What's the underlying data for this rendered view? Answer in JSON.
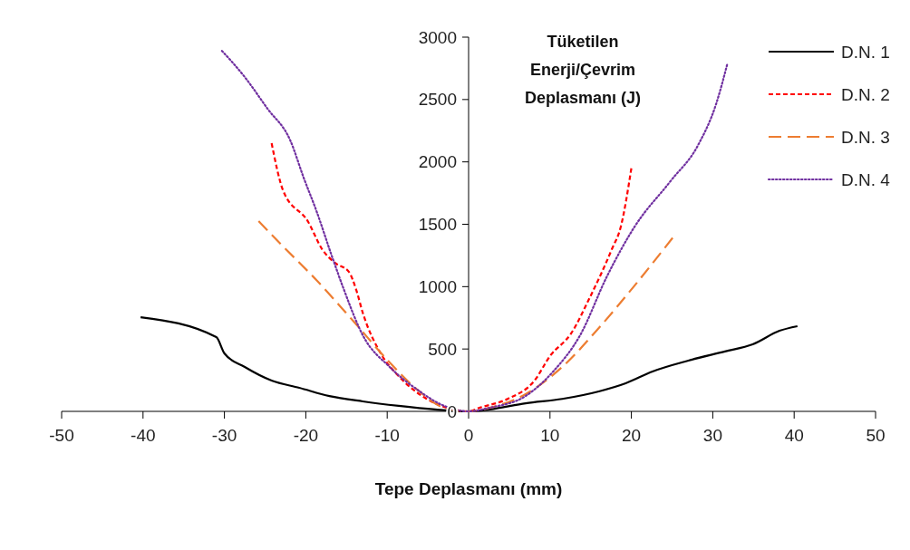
{
  "chart_data": {
    "type": "line",
    "title": "Tüketilen Enerji/Çevrim Deplasmanı (J)",
    "xlabel": "Tepe Deplasmanı (mm)",
    "xlim": [
      -50,
      50
    ],
    "xticks": [
      -50,
      -40,
      -30,
      -20,
      -10,
      0,
      10,
      20,
      30,
      40,
      50
    ],
    "ylim": [
      0,
      3000
    ],
    "yticks": [
      0,
      500,
      1000,
      1500,
      2000,
      2500,
      3000
    ],
    "grid": false,
    "legend": "top right",
    "marker": "none",
    "series": [
      {
        "name": "D.N. 1",
        "color": "#000000",
        "line_style": "solid",
        "x": [
          -40.3,
          -31,
          -30,
          -27.5,
          -24.2,
          -20.8,
          -17.1,
          -13,
          -8.6,
          -4.1,
          0,
          2.6,
          7,
          11.5,
          16,
          19.3,
          22.6,
          27,
          31.5,
          34.9,
          38.2,
          40.4
        ],
        "values": [
          755,
          595,
          465,
          356,
          247,
          189,
          123,
          80,
          44,
          15,
          0,
          15,
          65,
          100,
          160,
          225,
          320,
          407,
          480,
          537,
          646,
          683
        ]
      },
      {
        "name": "D.N. 2",
        "color": "#ff0000",
        "line_style": "dashed",
        "x": [
          -24.2,
          -22.8,
          -19.7,
          -18,
          -16.4,
          -14.7,
          -13.8,
          -13,
          -10.8,
          -8.6,
          -5.2,
          -1.9,
          0,
          1.4,
          4.8,
          8.1,
          10,
          12.6,
          14.8,
          17.6,
          18.7,
          20
        ],
        "values": [
          2150,
          1772,
          1518,
          1300,
          1190,
          1118,
          973,
          790,
          465,
          283,
          102,
          15,
          0,
          30,
          100,
          247,
          443,
          625,
          900,
          1300,
          1480,
          1950
        ]
      },
      {
        "name": "D.N. 3",
        "color": "#ed7d31",
        "line_style": "longdash",
        "x": [
          -25.8,
          -23,
          -18.6,
          -14.1,
          -9.7,
          -6.3,
          -3,
          0,
          2.6,
          7,
          11.5,
          16,
          20.4,
          25.1
        ],
        "values": [
          1525,
          1336,
          1046,
          719,
          392,
          174,
          29,
          0,
          29,
          138,
          356,
          668,
          1009,
          1394
        ]
      },
      {
        "name": "D.N. 4",
        "color": "#7030a0",
        "line_style": "dotted",
        "x": [
          -30.3,
          -27.5,
          -24.7,
          -21.9,
          -20.3,
          -18.6,
          -16.9,
          -15.3,
          -13,
          -9.7,
          -6.3,
          -3,
          0,
          2.6,
          7,
          10.4,
          13.7,
          17,
          20.4,
          24.8,
          28.2,
          30.4,
          31.8
        ],
        "values": [
          2890,
          2680,
          2426,
          2171,
          1880,
          1590,
          1264,
          973,
          610,
          356,
          174,
          44,
          0,
          29,
          123,
          320,
          610,
          1082,
          1481,
          1845,
          2135,
          2462,
          2789
        ]
      }
    ]
  }
}
